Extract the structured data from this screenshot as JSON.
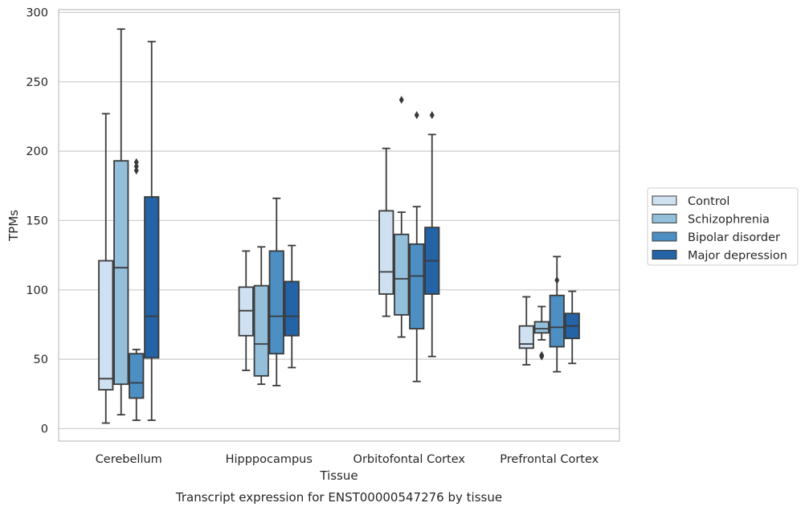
{
  "chart_data": {
    "type": "boxplot",
    "caption": "Transcript expression for ENST00000547276 by tissue",
    "xlabel": "Tissue",
    "ylabel": "TPMs",
    "ylim": [
      -9,
      302
    ],
    "yticks": [
      0,
      50,
      100,
      150,
      200,
      250,
      300
    ],
    "grid": "horizontal",
    "legend_position": "right",
    "categories": [
      "Cerebellum",
      "Hipppocampus",
      "Orbitofontal Cortex",
      "Prefrontal Cortex"
    ],
    "series": [
      {
        "name": "Control",
        "color": "#cfe0f1",
        "boxes": [
          {
            "whisker_low": 4,
            "q1": 28,
            "median": 36,
            "q3": 121,
            "whisker_high": 227,
            "outliers": []
          },
          {
            "whisker_low": 42,
            "q1": 67,
            "median": 85,
            "q3": 102,
            "whisker_high": 128,
            "outliers": []
          },
          {
            "whisker_low": 81,
            "q1": 97,
            "median": 113,
            "q3": 157,
            "whisker_high": 202,
            "outliers": []
          },
          {
            "whisker_low": 46,
            "q1": 58,
            "median": 61,
            "q3": 74,
            "whisker_high": 95,
            "outliers": []
          }
        ]
      },
      {
        "name": "Schizophrenia",
        "color": "#93bfdb",
        "boxes": [
          {
            "whisker_low": 10,
            "q1": 32,
            "median": 116,
            "q3": 193,
            "whisker_high": 288,
            "outliers": []
          },
          {
            "whisker_low": 32,
            "q1": 38,
            "median": 61,
            "q3": 103,
            "whisker_high": 131,
            "outliers": []
          },
          {
            "whisker_low": 66,
            "q1": 82,
            "median": 108,
            "q3": 140,
            "whisker_high": 156,
            "outliers": [
              237
            ]
          },
          {
            "whisker_low": 64,
            "q1": 69,
            "median": 72,
            "q3": 77,
            "whisker_high": 88,
            "outliers": [
              53,
              52
            ]
          }
        ]
      },
      {
        "name": "Bipolar disorder",
        "color": "#4d8fc2",
        "boxes": [
          {
            "whisker_low": 6,
            "q1": 22,
            "median": 33,
            "q3": 54,
            "whisker_high": 57,
            "outliers": [
              186,
              189,
              192
            ]
          },
          {
            "whisker_low": 31,
            "q1": 54,
            "median": 81,
            "q3": 128,
            "whisker_high": 166,
            "outliers": []
          },
          {
            "whisker_low": 34,
            "q1": 72,
            "median": 110,
            "q3": 133,
            "whisker_high": 160,
            "outliers": [
              226
            ]
          },
          {
            "whisker_low": 41,
            "q1": 59,
            "median": 73,
            "q3": 96,
            "whisker_high": 124,
            "outliers": [
              107
            ]
          }
        ]
      },
      {
        "name": "Major depression",
        "color": "#2363a6",
        "boxes": [
          {
            "whisker_low": 6,
            "q1": 51,
            "median": 81,
            "q3": 167,
            "whisker_high": 279,
            "outliers": []
          },
          {
            "whisker_low": 44,
            "q1": 67,
            "median": 81,
            "q3": 106,
            "whisker_high": 132,
            "outliers": []
          },
          {
            "whisker_low": 52,
            "q1": 97,
            "median": 121,
            "q3": 145,
            "whisker_high": 212,
            "outliers": [
              226
            ]
          },
          {
            "whisker_low": 47,
            "q1": 65,
            "median": 74,
            "q3": 83,
            "whisker_high": 99,
            "outliers": []
          }
        ]
      }
    ]
  }
}
